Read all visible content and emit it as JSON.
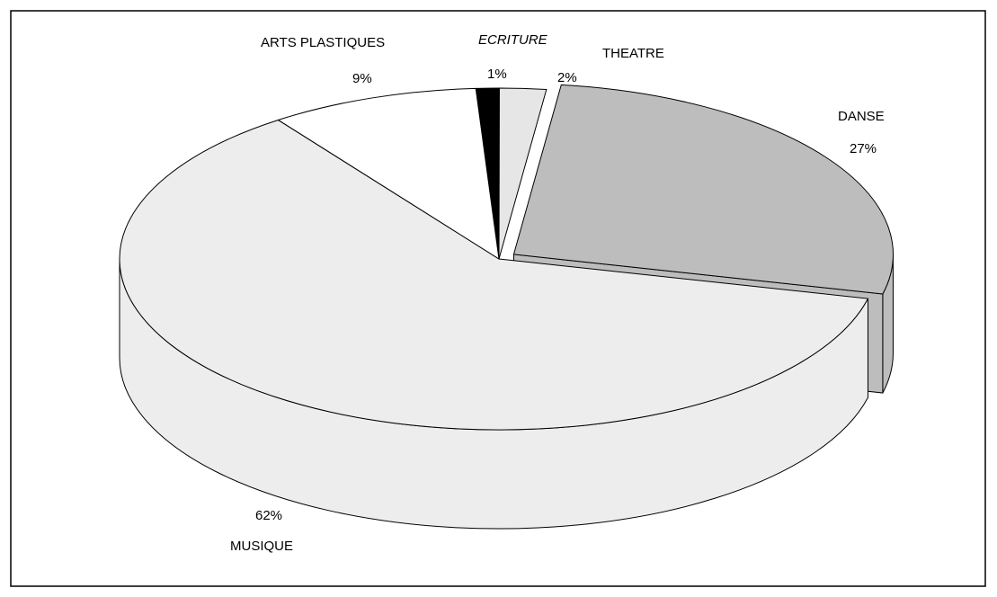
{
  "chart_data": {
    "type": "pie",
    "categories": [
      "ECRITURE",
      "THEATRE",
      "DANSE",
      "MUSIQUE",
      "ARTS PLASTIQUES"
    ],
    "values": [
      1,
      2,
      27,
      62,
      9
    ],
    "value_labels": [
      "1%",
      "2%",
      "27%",
      "62%",
      "9%"
    ],
    "colors": [
      "#000000",
      "#e6e6e6",
      "#bdbdbd",
      "#ededed",
      "#ffffff"
    ],
    "explode": "DANSE"
  }
}
